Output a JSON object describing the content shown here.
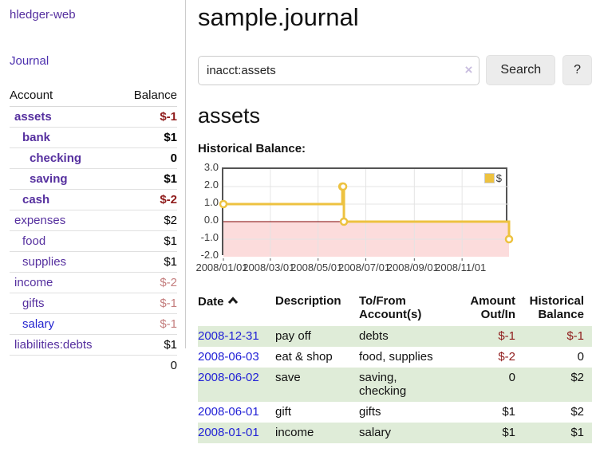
{
  "app": {
    "brand": "hledger-web",
    "nav_journal": "Journal"
  },
  "sidebar": {
    "header": {
      "account": "Account",
      "balance": "Balance"
    },
    "accounts": [
      {
        "name": "assets",
        "balance": "$-1"
      },
      {
        "name": "bank",
        "balance": "$1"
      },
      {
        "name": "checking",
        "balance": "0"
      },
      {
        "name": "saving",
        "balance": "$1"
      },
      {
        "name": "cash",
        "balance": "$-2"
      },
      {
        "name": "expenses",
        "balance": "$2"
      },
      {
        "name": "food",
        "balance": "$1"
      },
      {
        "name": "supplies",
        "balance": "$1"
      },
      {
        "name": "income",
        "balance": "$-2"
      },
      {
        "name": "gifts",
        "balance": "$-1"
      },
      {
        "name": "salary",
        "balance": "$-1"
      },
      {
        "name": "liabilities:debts",
        "balance": "$1"
      }
    ],
    "total": "0"
  },
  "header": {
    "title": "sample.journal"
  },
  "search": {
    "value": "inacct:assets",
    "clear_icon": "×",
    "button": "Search",
    "help_button": "?"
  },
  "main": {
    "account_title": "assets",
    "chart_label": "Historical Balance:"
  },
  "chart_data": {
    "type": "line",
    "step": true,
    "title": "Historical Balance",
    "series": [
      {
        "name": "$",
        "color": "#edc240",
        "points": [
          [
            "2008-01-01",
            1
          ],
          [
            "2008-06-01",
            2
          ],
          [
            "2008-06-02",
            2
          ],
          [
            "2008-06-03",
            0
          ],
          [
            "2008-12-31",
            -1
          ]
        ]
      }
    ],
    "ylim": [
      -2.0,
      3.0
    ],
    "yticks": [
      "3.0",
      "2.0",
      "1.0",
      "0.0",
      "-1.0",
      "-2.0"
    ],
    "xticks": [
      "2008/01/01",
      "2008/03/01",
      "2008/05/01",
      "2008/07/01",
      "2008/09/01",
      "2008/11/01"
    ],
    "legend": "$",
    "legend_position": "top-right",
    "grid": true,
    "negative_region_color": "#fcdcdc",
    "zero_line_color": "#800000"
  },
  "register": {
    "headers": {
      "date": "Date",
      "description": "Description",
      "tofrom_l1": "To/From",
      "tofrom_l2": "Account(s)",
      "amount_l1": "Amount",
      "amount_l2": "Out/In",
      "hist_l1": "Historical",
      "hist_l2": "Balance"
    },
    "rows": [
      {
        "date": "2008-12-31",
        "description": "pay off",
        "accounts": "debts",
        "amount": "$-1",
        "balance": "$-1"
      },
      {
        "date": "2008-06-03",
        "description": "eat & shop",
        "accounts": "food, supplies",
        "amount": "$-2",
        "balance": "0"
      },
      {
        "date": "2008-06-02",
        "description": "save",
        "accounts": "saving, checking",
        "amount": "0",
        "balance": "$2"
      },
      {
        "date": "2008-06-01",
        "description": "gift",
        "accounts": "gifts",
        "amount": "$1",
        "balance": "$2"
      },
      {
        "date": "2008-01-01",
        "description": "income",
        "accounts": "salary",
        "amount": "$1",
        "balance": "$1"
      }
    ]
  }
}
